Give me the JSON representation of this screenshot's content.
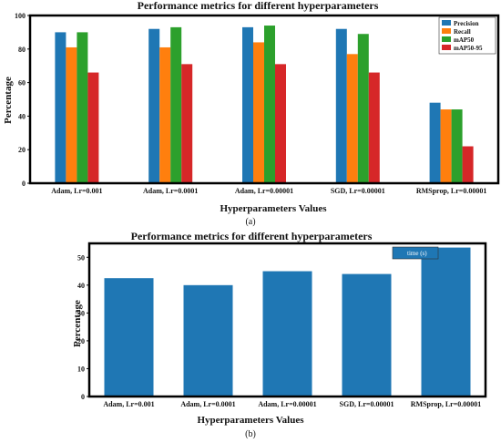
{
  "chart_data": [
    {
      "type": "bar",
      "title": "Performance metrics for different hyperparameters",
      "xlabel": "Hyperparameters Values",
      "ylabel": "Percentage",
      "caption": "(a)",
      "categories": [
        "Adam, Lr=0.001",
        "Adam, Lr=0.0001",
        "Adam, Lr=0.00001",
        "SGD, Lr=0.00001",
        "RMSprop, Lr=0.00001"
      ],
      "ylim": [
        0,
        100
      ],
      "yticks": [
        0,
        20,
        40,
        60,
        80,
        100
      ],
      "legend_position": "top-right",
      "series": [
        {
          "name": "Precision",
          "color": "#1f77b4",
          "values": [
            90,
            92,
            93,
            92,
            48
          ]
        },
        {
          "name": "Recall",
          "color": "#ff7f0e",
          "values": [
            81,
            81,
            84,
            77,
            44
          ]
        },
        {
          "name": "mAP50",
          "color": "#2ca02c",
          "values": [
            90,
            93,
            94,
            89,
            44
          ]
        },
        {
          "name": "mAP50-95",
          "color": "#d62728",
          "values": [
            66,
            71,
            71,
            66,
            22
          ]
        }
      ]
    },
    {
      "type": "bar",
      "title": "Performance metrics for different hyperparameters",
      "xlabel": "Hyperparameters Values",
      "ylabel": "Percentage",
      "caption": "(b)",
      "categories": [
        "Adam, Lr=0.001",
        "Adam, Lr=0.0001",
        "Adam, Lr=0.00001",
        "SGD, Lr=0.00001",
        "RMSprop, Lr=0.00001"
      ],
      "ylim": [
        0,
        55
      ],
      "yticks": [
        0,
        10,
        20,
        30,
        40,
        50
      ],
      "legend_position": "top-right",
      "series": [
        {
          "name": "time (s)",
          "color": "#1f77b4",
          "values": [
            42.5,
            40,
            45,
            44,
            53.5
          ]
        }
      ]
    }
  ]
}
